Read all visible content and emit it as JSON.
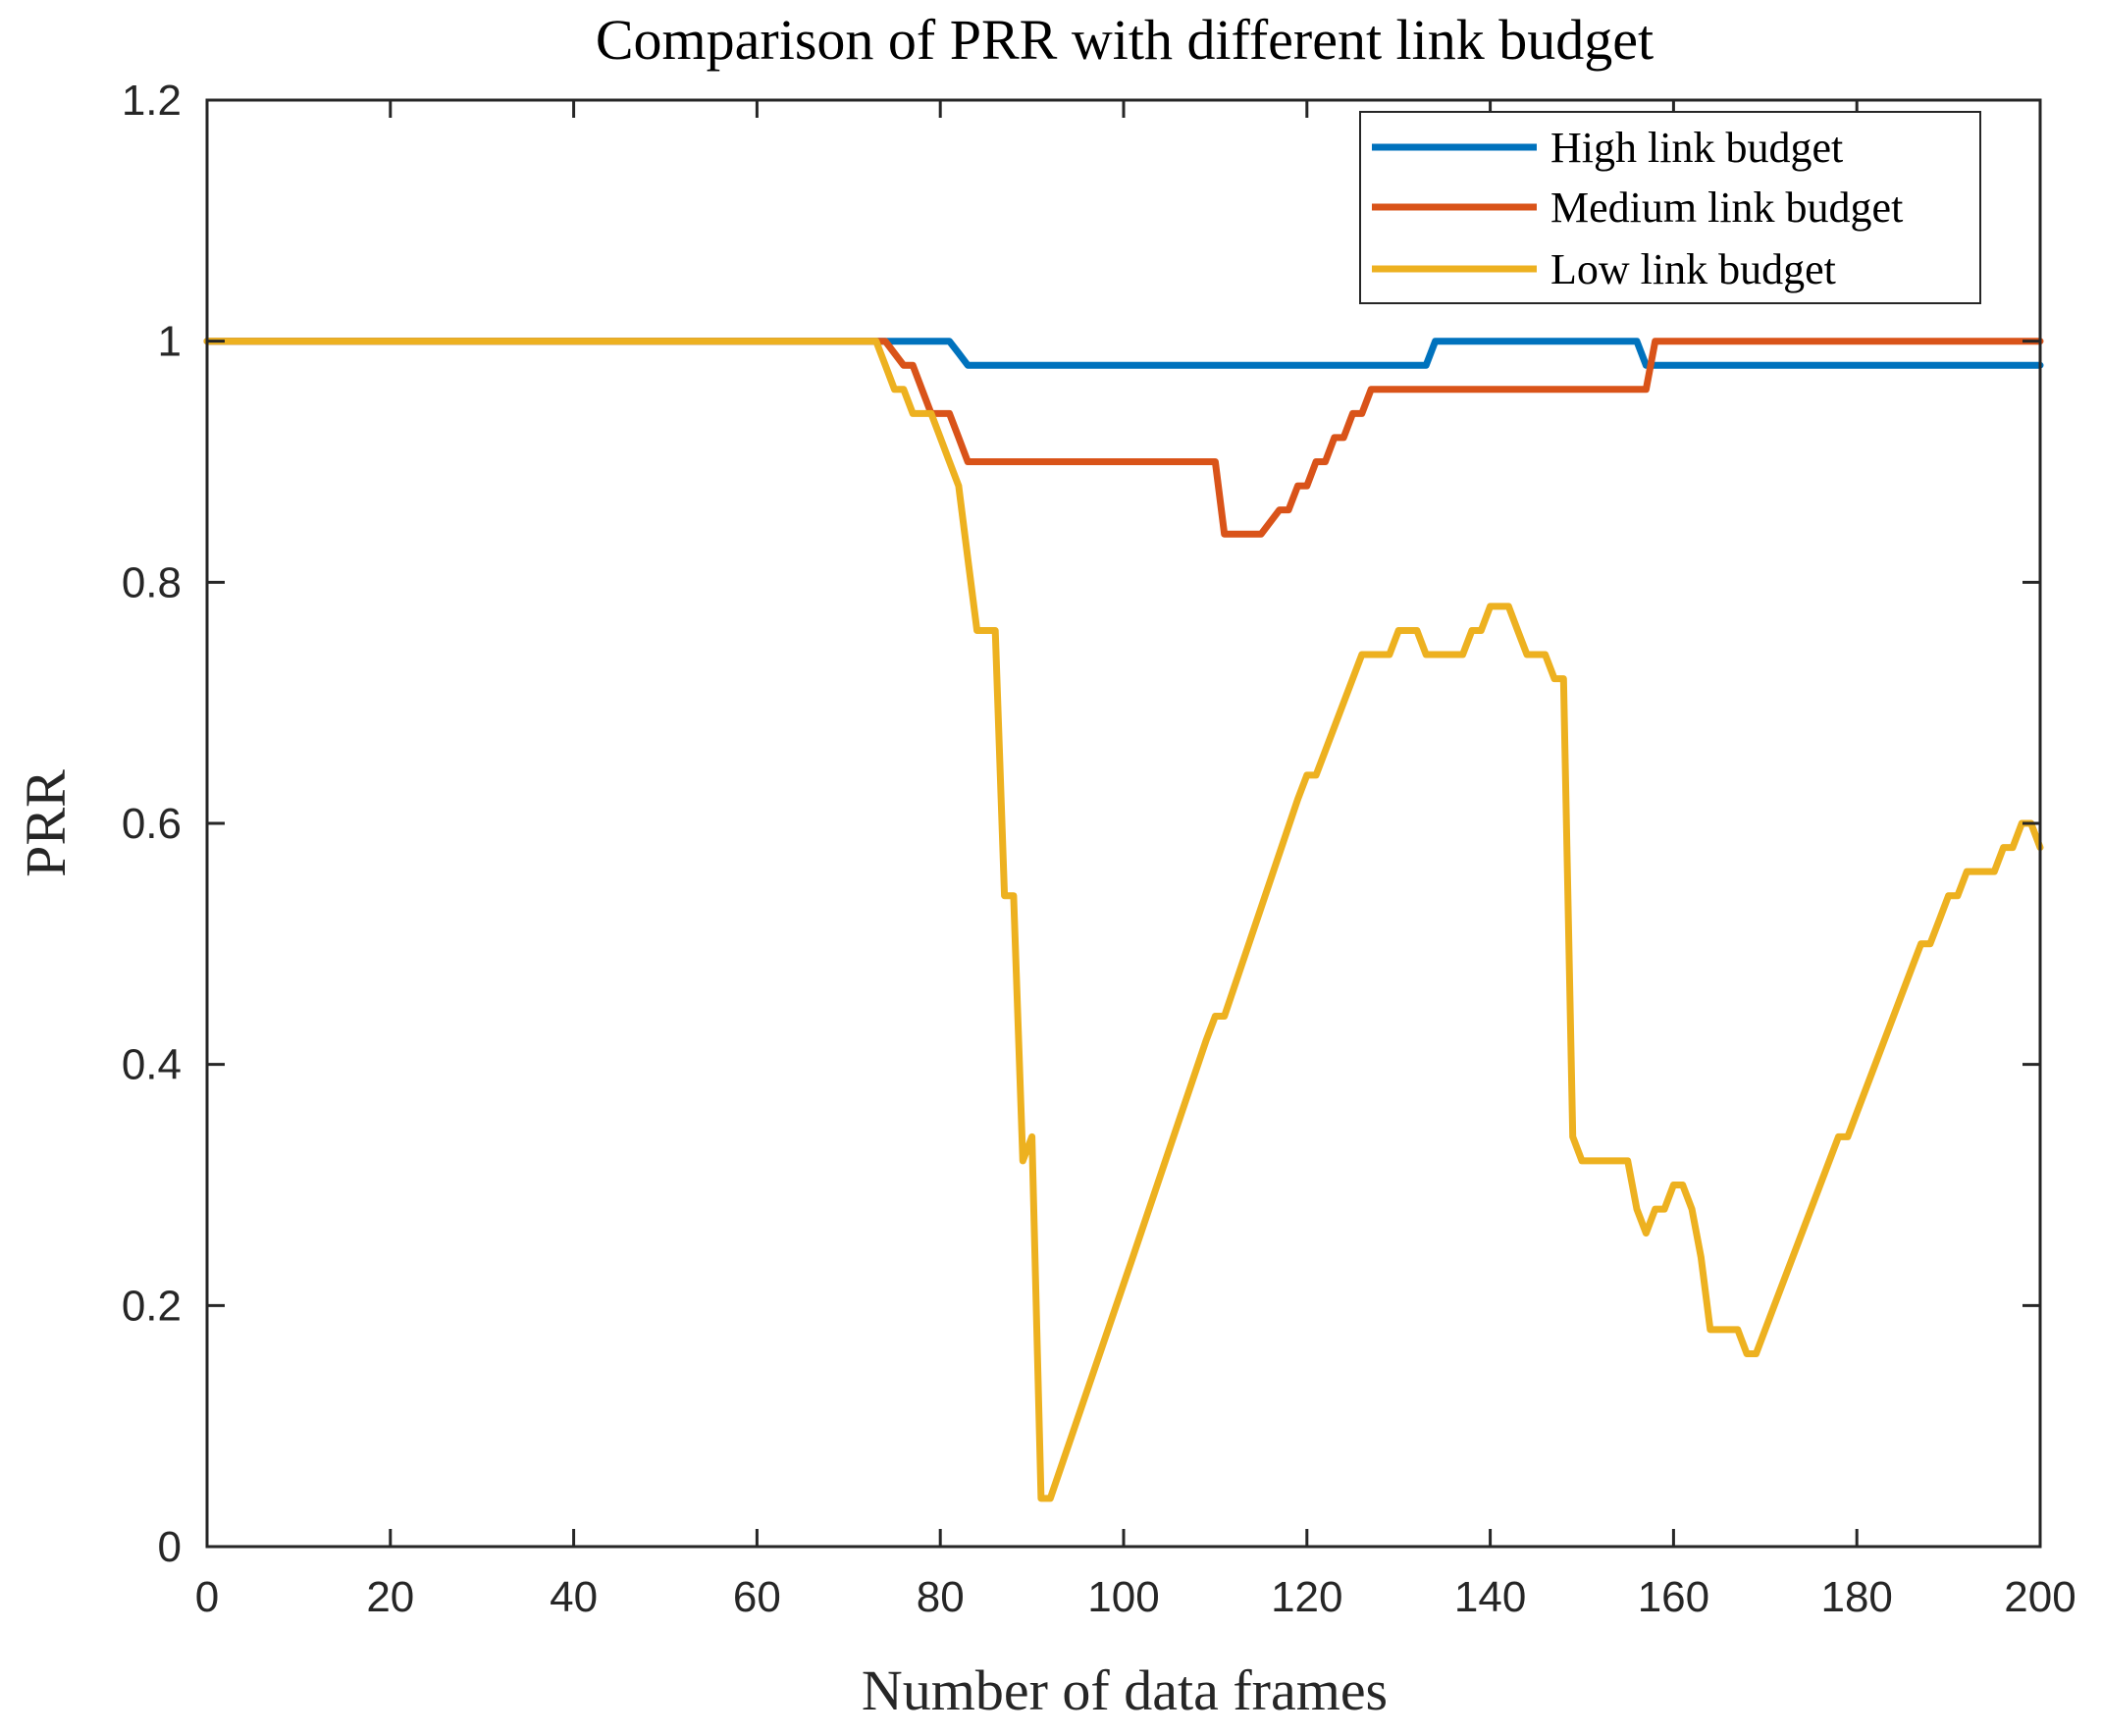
{
  "chart_data": {
    "type": "line",
    "title": "Comparison of PRR with different link budget",
    "xlabel": "Number of data frames",
    "ylabel": "PRR",
    "xlim": [
      0,
      200
    ],
    "ylim": [
      0,
      1.2
    ],
    "xticks": [
      0,
      20,
      40,
      60,
      80,
      100,
      120,
      140,
      160,
      180,
      200
    ],
    "yticks": [
      0,
      0.2,
      0.4,
      0.6,
      0.8,
      1,
      1.2
    ],
    "legend_position": "top-right",
    "series": [
      {
        "name": "High link budget",
        "color": "#0072BD",
        "x": [
          0,
          75,
          81,
          82,
          83,
          133,
          134,
          156,
          157,
          200
        ],
        "y": [
          1,
          1,
          1,
          0.99,
          0.98,
          0.98,
          1,
          1,
          0.98,
          0.98
        ]
      },
      {
        "name": "Medium link budget",
        "color": "#D95319",
        "x": [
          0,
          74,
          76,
          77,
          78,
          79,
          80,
          81,
          82,
          83,
          84,
          110,
          111,
          115,
          117,
          118,
          119,
          120,
          121,
          122,
          123,
          124,
          125,
          126,
          127,
          128,
          129,
          157,
          158,
          200
        ],
        "y": [
          1,
          1,
          0.98,
          0.98,
          0.96,
          0.94,
          0.94,
          0.94,
          0.92,
          0.9,
          0.9,
          0.9,
          0.84,
          0.84,
          0.86,
          0.86,
          0.88,
          0.88,
          0.9,
          0.9,
          0.92,
          0.92,
          0.94,
          0.94,
          0.96,
          0.96,
          0.96,
          0.96,
          1,
          1
        ]
      },
      {
        "name": "Low link budget",
        "color": "#EDB120",
        "x": [
          0,
          73,
          74,
          75,
          76,
          77,
          79,
          80,
          81,
          82,
          83,
          84,
          85,
          86,
          87,
          88,
          89,
          90,
          91,
          92,
          101,
          109,
          110,
          111,
          119,
          120,
          121,
          126,
          127,
          128,
          129,
          130,
          131,
          132,
          133,
          134,
          135,
          136,
          137,
          138,
          139,
          140,
          141,
          142,
          143,
          144,
          145,
          146,
          147,
          148,
          149,
          150,
          151,
          152,
          153,
          154,
          155,
          156,
          157,
          158,
          159,
          160,
          161,
          162,
          163,
          164,
          165,
          166,
          167,
          168,
          169,
          170,
          171,
          178,
          179,
          180,
          186,
          187,
          188,
          189,
          190,
          191,
          192,
          193,
          194,
          195,
          196,
          197,
          198,
          199,
          200
        ],
        "y": [
          1,
          1,
          0.98,
          0.96,
          0.96,
          0.94,
          0.94,
          0.92,
          0.9,
          0.88,
          0.82,
          0.76,
          0.76,
          0.76,
          0.54,
          0.54,
          0.32,
          0.34,
          0.04,
          0.04,
          0.24,
          0.42,
          0.44,
          0.44,
          0.62,
          0.64,
          0.64,
          0.74,
          0.74,
          0.74,
          0.74,
          0.76,
          0.76,
          0.76,
          0.74,
          0.74,
          0.74,
          0.74,
          0.74,
          0.76,
          0.76,
          0.78,
          0.78,
          0.78,
          0.76,
          0.74,
          0.74,
          0.74,
          0.72,
          0.72,
          0.34,
          0.32,
          0.32,
          0.32,
          0.32,
          0.32,
          0.32,
          0.28,
          0.26,
          0.28,
          0.28,
          0.3,
          0.3,
          0.28,
          0.24,
          0.18,
          0.18,
          0.18,
          0.18,
          0.16,
          0.16,
          0.18,
          0.2,
          0.34,
          0.34,
          0.36,
          0.48,
          0.5,
          0.5,
          0.52,
          0.54,
          0.54,
          0.56,
          0.56,
          0.56,
          0.56,
          0.58,
          0.58,
          0.6,
          0.6,
          0.58
        ]
      }
    ]
  }
}
